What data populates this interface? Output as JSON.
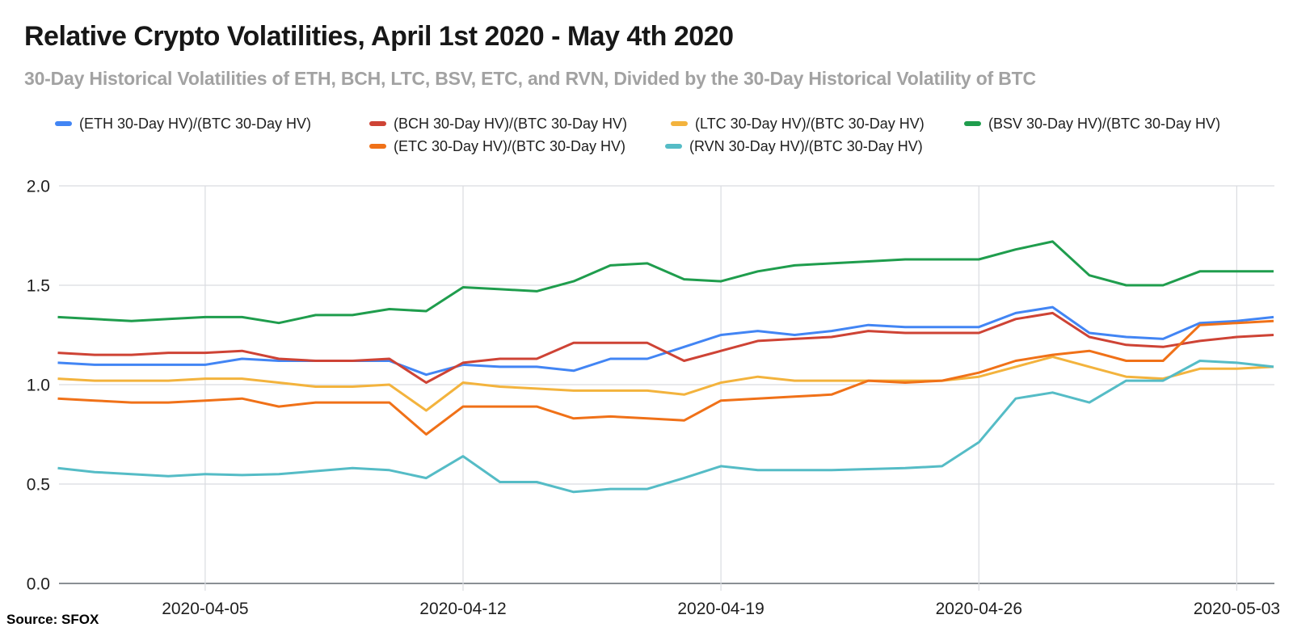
{
  "title": "Relative Crypto Volatilities, April 1st 2020 - May 4th 2020",
  "subtitle": "30-Day Historical Volatilities of ETH, BCH, LTC, BSV, ETC, and RVN, Divided by the 30-Day Historical Volatility of BTC",
  "source": "Source: SFOX",
  "chart_data": {
    "type": "line",
    "title": "Relative Crypto Volatilities, April 1st 2020 - May 4th 2020",
    "xlabel": "",
    "ylabel": "",
    "ylim": [
      0.0,
      2.0
    ],
    "grid": true,
    "legend_position": "top",
    "yticks": [
      "0.0",
      "0.5",
      "1.0",
      "1.5",
      "2.0"
    ],
    "xticks": [
      "2020-04-05",
      "2020-04-12",
      "2020-04-19",
      "2020-04-26",
      "2020-05-03"
    ],
    "x": [
      "2020-04-01",
      "2020-04-02",
      "2020-04-03",
      "2020-04-04",
      "2020-04-05",
      "2020-04-06",
      "2020-04-07",
      "2020-04-08",
      "2020-04-09",
      "2020-04-10",
      "2020-04-11",
      "2020-04-12",
      "2020-04-13",
      "2020-04-14",
      "2020-04-15",
      "2020-04-16",
      "2020-04-17",
      "2020-04-18",
      "2020-04-19",
      "2020-04-20",
      "2020-04-21",
      "2020-04-22",
      "2020-04-23",
      "2020-04-24",
      "2020-04-25",
      "2020-04-26",
      "2020-04-27",
      "2020-04-28",
      "2020-04-29",
      "2020-04-30",
      "2020-05-01",
      "2020-05-02",
      "2020-05-03",
      "2020-05-04"
    ],
    "series": [
      {
        "key": "eth",
        "name": "(ETH 30-Day HV)/(BTC 30-Day HV)",
        "color": "#4285F4",
        "values": [
          1.11,
          1.1,
          1.1,
          1.1,
          1.1,
          1.13,
          1.12,
          1.12,
          1.12,
          1.12,
          1.05,
          1.1,
          1.09,
          1.09,
          1.07,
          1.13,
          1.13,
          1.19,
          1.25,
          1.27,
          1.25,
          1.27,
          1.3,
          1.29,
          1.29,
          1.29,
          1.36,
          1.39,
          1.26,
          1.24,
          1.23,
          1.31,
          1.32,
          1.34
        ]
      },
      {
        "key": "bch",
        "name": "(BCH 30-Day HV)/(BTC 30-Day HV)",
        "color": "#CE4335",
        "values": [
          1.16,
          1.15,
          1.15,
          1.16,
          1.16,
          1.17,
          1.13,
          1.12,
          1.12,
          1.13,
          1.01,
          1.11,
          1.13,
          1.13,
          1.21,
          1.21,
          1.21,
          1.12,
          1.17,
          1.22,
          1.23,
          1.24,
          1.27,
          1.26,
          1.26,
          1.26,
          1.33,
          1.36,
          1.24,
          1.2,
          1.19,
          1.22,
          1.24,
          1.25
        ]
      },
      {
        "key": "ltc",
        "name": "(LTC 30-Day HV)/(BTC 30-Day HV)",
        "color": "#F3B33D",
        "values": [
          1.03,
          1.02,
          1.02,
          1.02,
          1.03,
          1.03,
          1.01,
          0.99,
          0.99,
          1.0,
          0.87,
          1.01,
          0.99,
          0.98,
          0.97,
          0.97,
          0.97,
          0.95,
          1.01,
          1.04,
          1.02,
          1.02,
          1.02,
          1.02,
          1.02,
          1.04,
          1.09,
          1.14,
          1.09,
          1.04,
          1.03,
          1.08,
          1.08,
          1.09
        ]
      },
      {
        "key": "bsv",
        "name": "(BSV 30-Day HV)/(BTC 30-Day HV)",
        "color": "#1F9D4D",
        "values": [
          1.34,
          1.33,
          1.32,
          1.33,
          1.34,
          1.34,
          1.31,
          1.35,
          1.35,
          1.38,
          1.37,
          1.49,
          1.48,
          1.47,
          1.52,
          1.6,
          1.61,
          1.53,
          1.52,
          1.57,
          1.6,
          1.61,
          1.62,
          1.63,
          1.63,
          1.63,
          1.68,
          1.72,
          1.55,
          1.5,
          1.5,
          1.57,
          1.57,
          1.57
        ]
      },
      {
        "key": "etc",
        "name": "(ETC 30-Day HV)/(BTC 30-Day HV)",
        "color": "#F07118",
        "values": [
          0.93,
          0.92,
          0.91,
          0.91,
          0.92,
          0.93,
          0.89,
          0.91,
          0.91,
          0.91,
          0.75,
          0.89,
          0.89,
          0.89,
          0.83,
          0.84,
          0.83,
          0.82,
          0.92,
          0.93,
          0.94,
          0.95,
          1.02,
          1.01,
          1.02,
          1.06,
          1.12,
          1.15,
          1.17,
          1.12,
          1.12,
          1.3,
          1.31,
          1.32
        ]
      },
      {
        "key": "rvn",
        "name": "(RVN 30-Day HV)/(BTC 30-Day HV)",
        "color": "#55BCC6",
        "values": [
          0.58,
          0.56,
          0.55,
          0.54,
          0.55,
          0.545,
          0.55,
          0.565,
          0.58,
          0.57,
          0.53,
          0.64,
          0.51,
          0.51,
          0.46,
          0.475,
          0.475,
          0.53,
          0.59,
          0.57,
          0.57,
          0.57,
          0.575,
          0.58,
          0.59,
          0.71,
          0.93,
          0.96,
          0.91,
          1.02,
          1.02,
          1.12,
          1.11,
          1.09
        ]
      }
    ]
  }
}
